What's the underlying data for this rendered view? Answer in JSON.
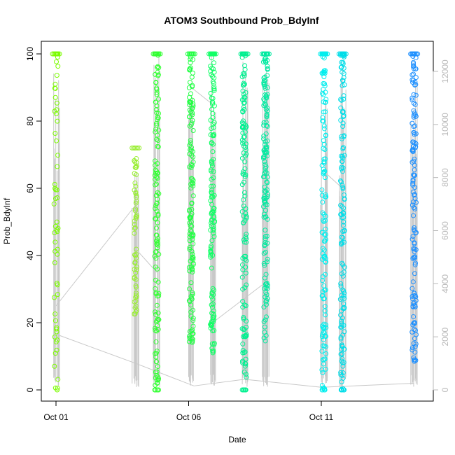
{
  "chart_data": {
    "type": "scatter",
    "title": "ATOM3 Southbound Prob_BdyInf",
    "xlabel": "Date",
    "ylabel": "Prob_BdyInf",
    "x_unit": "date",
    "xlim": [
      "2013-10-01",
      "2013-10-15"
    ],
    "ylim": [
      0,
      100
    ],
    "x_ticks": [
      {
        "date": "2013-10-01",
        "label": "Oct 01"
      },
      {
        "date": "2013-10-06",
        "label": "Oct 06"
      },
      {
        "date": "2013-10-11",
        "label": "Oct 11"
      }
    ],
    "y_ticks": [
      0,
      20,
      40,
      60,
      80,
      100
    ],
    "y2_ticks": [
      0,
      2000,
      4000,
      6000,
      8000,
      10000,
      12000
    ],
    "y2lim": [
      0,
      12500
    ],
    "secondary_axis_color": "#b8b8b8",
    "line_color": "#c8c8c8",
    "grid": false,
    "point_style": "open-circle",
    "color_gradient": "point color shifts from yellow-green through green and cyan to blue over time",
    "series": [
      {
        "x_date": "2013-10-01",
        "color": "#7cfc00",
        "y_min": 0,
        "y_max": 100
      },
      {
        "x_date": "2013-10-04",
        "color": "#99ee33",
        "y_min": 22,
        "y_max": 72
      },
      {
        "x_date": "2013-10-04.8",
        "color": "#33ff33",
        "y_min": 0,
        "y_max": 100
      },
      {
        "x_date": "2013-10-06.1",
        "color": "#22ff44",
        "y_min": 14,
        "y_max": 100
      },
      {
        "x_date": "2013-10-06.9",
        "color": "#11ff66",
        "y_min": 10,
        "y_max": 100
      },
      {
        "x_date": "2013-10-08.1",
        "color": "#00f090",
        "y_min": 0,
        "y_max": 100
      },
      {
        "x_date": "2013-10-08.9",
        "color": "#00eaa0",
        "y_min": 14,
        "y_max": 100
      },
      {
        "x_date": "2013-10-11.1",
        "color": "#00eeee",
        "y_min": 0,
        "y_max": 100
      },
      {
        "x_date": "2013-10-11.8",
        "color": "#00dde8",
        "y_min": 0,
        "y_max": 100
      },
      {
        "x_date": "2013-10-14.5",
        "color": "#1e90ff",
        "y_min": 8,
        "y_max": 100
      }
    ],
    "sequence_line_y2": [
      {
        "x_date": "2013-10-01",
        "y2": 2100
      },
      {
        "x_date": "2013-10-04",
        "y2": 1000
      },
      {
        "x_date": "2013-10-06.2",
        "y2": 150
      },
      {
        "x_date": "2013-10-08.1",
        "y2": 400
      },
      {
        "x_date": "2013-10-11",
        "y2": 100
      },
      {
        "x_date": "2013-10-14.5",
        "y2": 250
      }
    ]
  }
}
